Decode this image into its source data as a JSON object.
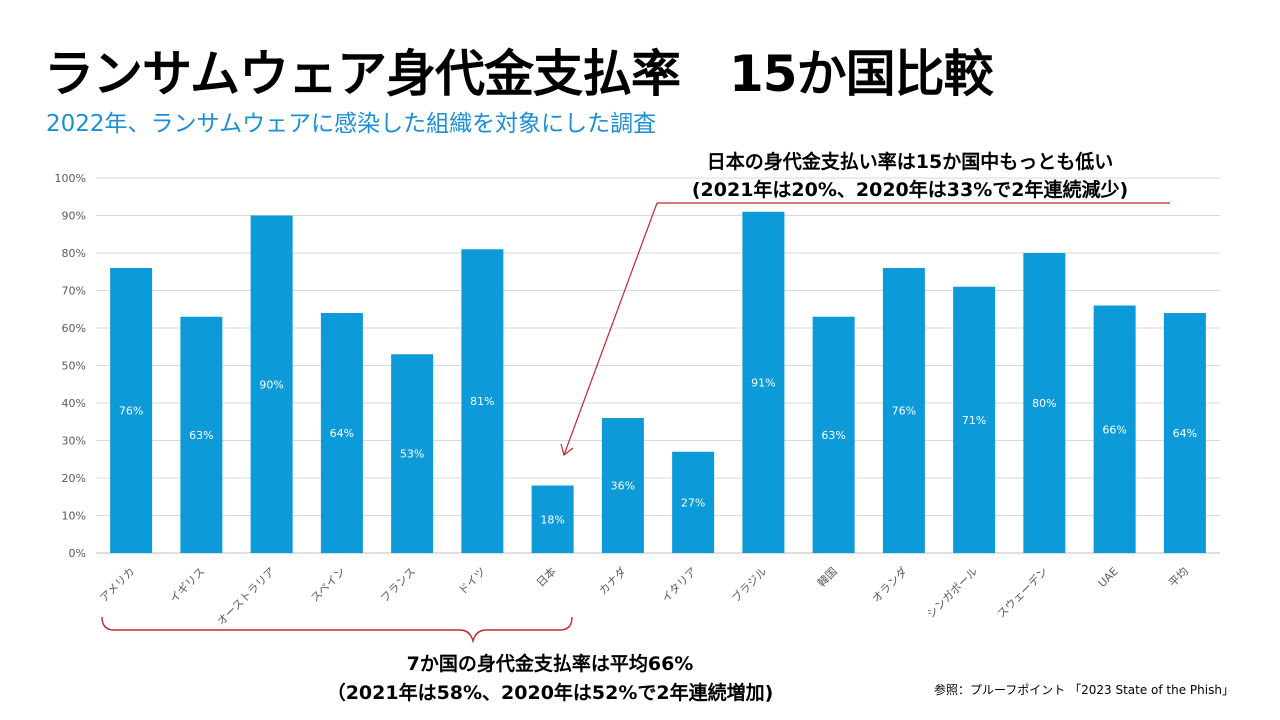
{
  "title": "ランサムウェア身代金支払率　15か国比較",
  "subtitle": "2022年、ランサムウェアに感染した組織を対象にした調査",
  "callout_top": {
    "line1": "日本の身代金支払い率は15か国中もっとも低い",
    "line2": "(2021年は20%、2020年は33%で2年連続減少)"
  },
  "callout_bottom": {
    "line1": "7か国の身代金支払率は平均66%",
    "line2": "（2021年は58%、2020年は52%で2年連続増加)"
  },
  "source": "参照：プルーフポイント 「2023 State of the Phish」",
  "colors": {
    "bar": "#0c9ad8",
    "accent": "#c0282f",
    "subtitle": "#1a8fd6"
  },
  "chart_data": {
    "type": "bar",
    "categories": [
      "アメリカ",
      "イギリス",
      "オーストラリア",
      "スペイン",
      "フランス",
      "ドイツ",
      "日本",
      "カナダ",
      "イタリア",
      "ブラジル",
      "韓国",
      "オランダ",
      "シンガポール",
      "スウェーデン",
      "UAE",
      "平均"
    ],
    "values": [
      76,
      63,
      90,
      64,
      53,
      81,
      18,
      36,
      27,
      91,
      63,
      76,
      71,
      80,
      66,
      64
    ],
    "data_labels": [
      "76%",
      "63%",
      "90%",
      "64%",
      "53%",
      "81%",
      "18%",
      "36%",
      "27%",
      "91%",
      "63%",
      "76%",
      "71%",
      "80%",
      "66%",
      "64%"
    ],
    "y_ticks": [
      "0%",
      "10%",
      "20%",
      "30%",
      "40%",
      "50%",
      "60%",
      "70%",
      "80%",
      "90%",
      "100%"
    ],
    "ylim": [
      0,
      100
    ],
    "grid": true,
    "legend": "none"
  }
}
